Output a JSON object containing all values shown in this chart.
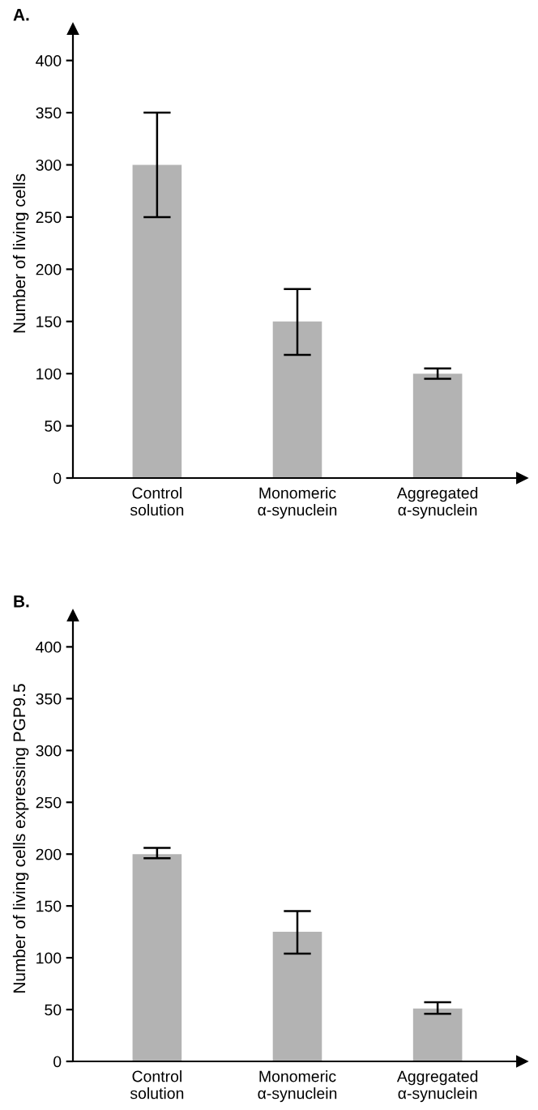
{
  "chart_data": [
    {
      "type": "bar",
      "title": "A.",
      "ylabel": "Number of living cells",
      "categories": [
        "Control\nsolution",
        "Monomeric\nα-synuclein",
        "Aggregated\nα-synuclein"
      ],
      "values": [
        300,
        150,
        100
      ],
      "errors": [
        [
          250,
          350
        ],
        [
          118,
          181
        ],
        [
          95,
          105
        ]
      ],
      "color": "#b3b3b3",
      "ylim": [
        0,
        430
      ],
      "yticks": [
        0,
        50,
        100,
        150,
        200,
        250,
        300,
        350,
        400
      ],
      "grid": false,
      "legend": false
    },
    {
      "type": "bar",
      "title": "B.",
      "ylabel": "Number of living cells expressing PGP9.5",
      "categories": [
        "Control\nsolution",
        "Monomeric\nα-synuclein",
        "Aggregated\nα-synuclein"
      ],
      "values": [
        200,
        125,
        51
      ],
      "errors": [
        [
          196,
          206
        ],
        [
          104,
          145
        ],
        [
          46,
          57
        ]
      ],
      "color": "#b3b3b3",
      "ylim": [
        0,
        430
      ],
      "yticks": [
        0,
        50,
        100,
        150,
        200,
        250,
        300,
        350,
        400
      ],
      "grid": false,
      "legend": false
    }
  ]
}
